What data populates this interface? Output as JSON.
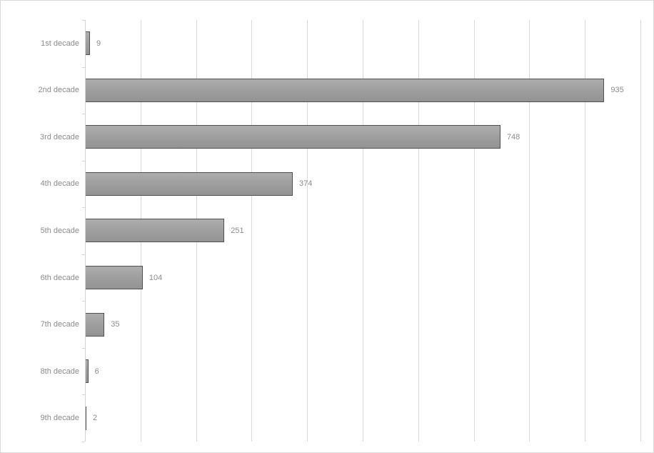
{
  "chart_data": {
    "type": "bar",
    "orientation": "horizontal",
    "title": "",
    "xlabel": "",
    "ylabel": "",
    "categories": [
      "1st decade",
      "2nd decade",
      "3rd decade",
      "4th decade",
      "5th decade",
      "6th decade",
      "7th decade",
      "8th decade",
      "9th decade"
    ],
    "values": [
      9,
      935,
      748,
      374,
      251,
      104,
      35,
      6,
      2
    ],
    "data_labels": [
      "9",
      "935",
      "748",
      "374",
      "251",
      "104",
      "35",
      "6",
      "2"
    ],
    "xlim": [
      0,
      1000
    ],
    "gridline_step": 100,
    "grid": "vertical-only",
    "legend": "none",
    "axis_tick_labels_visible": false
  },
  "colors": {
    "background": "#ffffff",
    "frame_border": "#d9d9d9",
    "gridline": "#d9d9d9",
    "axis_line": "#d3d3d3",
    "bar_fill_top": "#adadad",
    "bar_fill_bottom": "#939393",
    "bar_border": "#4f4f4f",
    "label_text": "#8c8c8c"
  }
}
